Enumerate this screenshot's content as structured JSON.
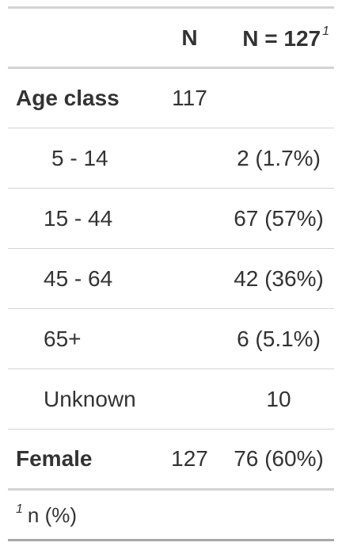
{
  "header": {
    "col_label": "",
    "col_n": "N",
    "col_stat": "N = 127",
    "col_stat_footnote_marker": "1"
  },
  "rows": [
    {
      "label": "Age class",
      "n": "117",
      "stat": "",
      "type": "variable"
    },
    {
      "label": "5 - 14",
      "n": "",
      "stat": "2 (1.7%)",
      "type": "level"
    },
    {
      "label": "15 - 44",
      "n": "",
      "stat": "67 (57%)",
      "type": "level"
    },
    {
      "label": "45 - 64",
      "n": "",
      "stat": "42 (36%)",
      "type": "level"
    },
    {
      "label": "65+",
      "n": "",
      "stat": "6 (5.1%)",
      "type": "level"
    },
    {
      "label": "Unknown",
      "n": "",
      "stat": "10",
      "type": "level"
    },
    {
      "label": "Female",
      "n": "127",
      "stat": "76 (60%)",
      "type": "variable"
    }
  ],
  "footnote": {
    "marker": "1",
    "text": "n (%)"
  }
}
